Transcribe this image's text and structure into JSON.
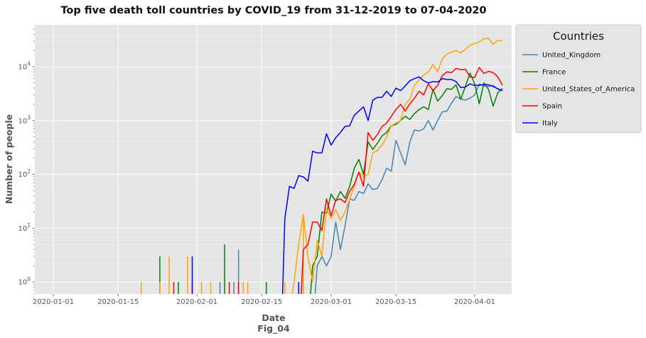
{
  "chart_data": {
    "type": "line",
    "title": "Top five death toll countries by COVID_19 from 31-12-2019 to 07-04-2020",
    "xlabel": "Date",
    "xlabel_sub": "Fig_04",
    "ylabel": "Number of people",
    "yscale": "log",
    "ylim": [
      0.6,
      60000
    ],
    "xlim": [
      -3,
      100
    ],
    "x_start_date": "2019-12-31",
    "x_tick_labels": [
      "2020-01-01",
      "2020-01-15",
      "2020-02-01",
      "2020-02-15",
      "2020-03-01",
      "2020-03-15",
      "2020-04-01"
    ],
    "x_tick_days": [
      1,
      15,
      32,
      46,
      61,
      75,
      92
    ],
    "y_tick_labels": [
      "10",
      "10",
      "10",
      "10",
      "10"
    ],
    "y_tick_exponents": [
      "0",
      "1",
      "2",
      "3",
      "4"
    ],
    "y_tick_values": [
      1,
      10,
      100,
      1000,
      10000
    ],
    "legend_title": "Countries",
    "legend_position": "outside-right-top",
    "grid": true,
    "series": [
      {
        "name": "United_Kingdom",
        "color": "#4682b4",
        "spikes": [
          [
            37,
            1
          ],
          [
            40,
            1
          ],
          [
            41,
            4
          ],
          [
            55,
            4
          ]
        ],
        "x": [
          58,
          59,
          60,
          61,
          62,
          63,
          64,
          65,
          66,
          67,
          68,
          69,
          70,
          71,
          72,
          73,
          74,
          75,
          76,
          77,
          78,
          79,
          80,
          81,
          82,
          83,
          84,
          85,
          86,
          87,
          88,
          89,
          90,
          91,
          92,
          93,
          94,
          95,
          96,
          97,
          98
        ],
        "y": [
          2,
          3,
          2,
          3,
          13,
          4,
          11,
          35,
          33,
          48,
          44,
          67,
          52,
          55,
          80,
          130,
          115,
          430,
          250,
          150,
          400,
          670,
          640,
          700,
          1000,
          670,
          1000,
          1450,
          1500,
          2100,
          2800,
          2500,
          2400,
          2600,
          3000,
          4800,
          4400,
          4300,
          4500,
          3800,
          3600
        ]
      },
      {
        "name": "France",
        "color": "#008000",
        "spikes": [
          [
            24,
            3
          ],
          [
            28,
            1
          ],
          [
            38,
            5
          ],
          [
            47,
            1
          ]
        ],
        "x": [
          57,
          58,
          59,
          60,
          61,
          62,
          63,
          64,
          65,
          66,
          67,
          68,
          69,
          70,
          71,
          72,
          73,
          74,
          75,
          76,
          77,
          78,
          79,
          80,
          81,
          82,
          83,
          84,
          85,
          86,
          87,
          88,
          89,
          90,
          91,
          92,
          93,
          94,
          95,
          96,
          97,
          98
        ],
        "y": [
          2,
          3,
          20,
          19,
          43,
          32,
          48,
          36,
          60,
          130,
          190,
          100,
          400,
          290,
          380,
          520,
          600,
          800,
          850,
          1000,
          1200,
          1050,
          1350,
          1600,
          1800,
          1600,
          3800,
          2300,
          2900,
          3900,
          3800,
          4600,
          2500,
          4300,
          7600,
          4800,
          2050,
          5000,
          3800,
          1850,
          3300,
          3950
        ]
      },
      {
        "name": "United_States_of_America",
        "color": "#ffa500",
        "spikes": [
          [
            20,
            1
          ],
          [
            24,
            1
          ],
          [
            26,
            3
          ],
          [
            30,
            3
          ],
          [
            33,
            1
          ],
          [
            35,
            1
          ],
          [
            42,
            1
          ],
          [
            43,
            1
          ],
          [
            51,
            1
          ],
          [
            55,
            18
          ]
        ],
        "x": [
          53,
          54,
          55,
          56,
          57,
          58,
          59,
          60,
          61,
          62,
          63,
          64,
          65,
          66,
          67,
          68,
          69,
          70,
          71,
          72,
          73,
          74,
          75,
          76,
          77,
          78,
          79,
          80,
          81,
          82,
          83,
          84,
          85,
          86,
          87,
          88,
          89,
          90,
          91,
          92,
          93,
          94,
          95,
          96,
          97,
          98
        ],
        "y": [
          1,
          5,
          18,
          3,
          1,
          6,
          3,
          23,
          15,
          22,
          14,
          20,
          35,
          60,
          110,
          90,
          100,
          250,
          280,
          350,
          500,
          800,
          900,
          1000,
          2000,
          2500,
          4500,
          5700,
          7000,
          8000,
          11000,
          8000,
          14000,
          17000,
          19000,
          20000,
          18000,
          21000,
          25000,
          27000,
          29000,
          33000,
          34000,
          26000,
          31000,
          30000
        ]
      },
      {
        "name": "Spain",
        "color": "#ff0000",
        "spikes": [
          [
            27,
            1
          ],
          [
            31,
            1
          ],
          [
            39,
            1
          ],
          [
            41,
            1
          ]
        ],
        "x": [
          55,
          56,
          57,
          58,
          59,
          60,
          61,
          62,
          63,
          64,
          65,
          66,
          67,
          68,
          69,
          70,
          71,
          72,
          73,
          74,
          75,
          76,
          77,
          78,
          79,
          80,
          81,
          82,
          83,
          84,
          85,
          86,
          87,
          88,
          89,
          90,
          91,
          92,
          93,
          94,
          95,
          96,
          97,
          98
        ],
        "y": [
          4,
          5,
          13,
          13,
          9,
          35,
          17,
          33,
          35,
          30,
          48,
          65,
          110,
          60,
          600,
          430,
          550,
          780,
          900,
          1200,
          1600,
          2000,
          1500,
          2050,
          2600,
          3500,
          3000,
          4800,
          3600,
          4500,
          6800,
          8000,
          7800,
          9300,
          8800,
          9000,
          6500,
          6300,
          9700,
          7500,
          8200,
          7800,
          6500,
          4500
        ]
      },
      {
        "name": "Italy",
        "color": "#0000ff",
        "spikes": [
          [
            31,
            3
          ],
          [
            54,
            1
          ]
        ],
        "x": [
          51,
          52,
          53,
          54,
          55,
          56,
          57,
          58,
          59,
          60,
          61,
          62,
          63,
          64,
          65,
          66,
          67,
          68,
          69,
          70,
          71,
          72,
          73,
          74,
          75,
          76,
          77,
          78,
          79,
          80,
          81,
          82,
          83,
          84,
          85,
          86,
          87,
          88,
          89,
          90,
          91,
          92,
          93,
          94,
          95,
          96,
          97,
          98
        ],
        "y": [
          15,
          60,
          55,
          95,
          90,
          75,
          270,
          250,
          250,
          570,
          350,
          480,
          600,
          780,
          800,
          1250,
          1500,
          1800,
          1000,
          2400,
          2700,
          2700,
          3500,
          2800,
          4000,
          3600,
          4400,
          5500,
          6000,
          6500,
          5500,
          5000,
          5300,
          5200,
          6000,
          5800,
          5800,
          5300,
          4100,
          4200,
          4800,
          4500,
          4500,
          4700,
          4600,
          4300,
          3900,
          3600
        ]
      }
    ]
  }
}
